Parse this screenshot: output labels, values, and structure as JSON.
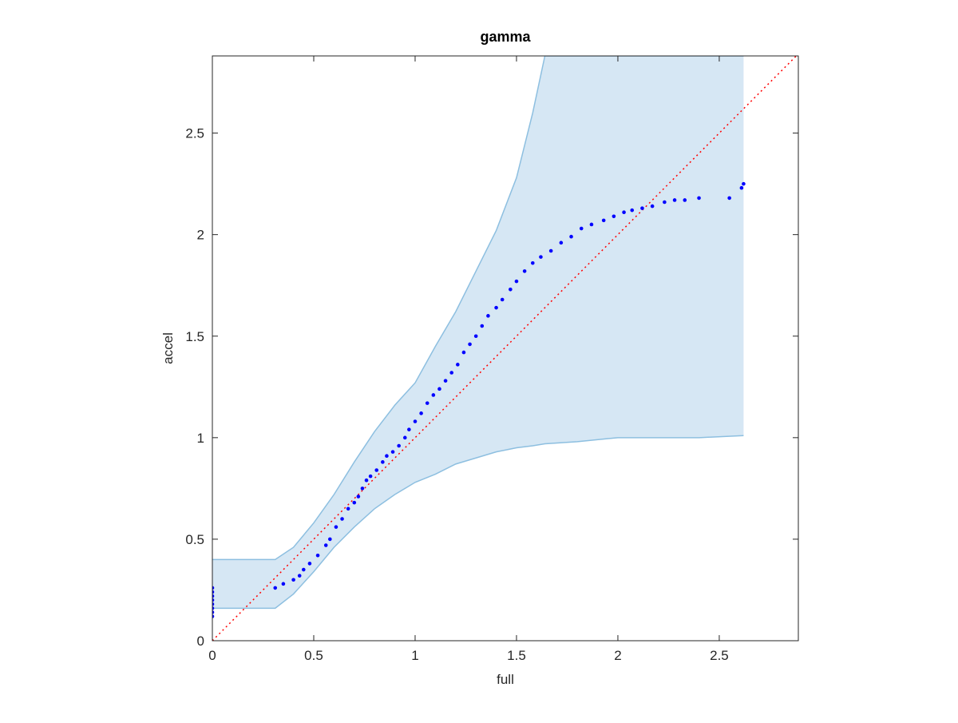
{
  "chart_data": {
    "type": "scatter",
    "title": "gamma",
    "x_label": "full",
    "y_label": "accel",
    "xlim": [
      0,
      2.89
    ],
    "ylim": [
      0,
      2.88
    ],
    "xticks": [
      0,
      0.5,
      1,
      1.5,
      2,
      2.5
    ],
    "yticks": [
      0,
      0.5,
      1,
      1.5,
      2,
      2.5
    ],
    "color": "#0000ff",
    "diagonal_color": "#ff0000",
    "band_color": "#d6e7f4",
    "band_edge_color": "#8dbfe0",
    "band": {
      "x": [
        0,
        0.31,
        0.4,
        0.5,
        0.6,
        0.7,
        0.8,
        0.9,
        1.0,
        1.1,
        1.2,
        1.3,
        1.4,
        1.5,
        1.58,
        1.64,
        1.8,
        2.0,
        2.2,
        2.4,
        2.62
      ],
      "upper": [
        0.4,
        0.4,
        0.46,
        0.58,
        0.72,
        0.88,
        1.03,
        1.16,
        1.27,
        1.45,
        1.62,
        1.82,
        2.02,
        2.28,
        2.6,
        2.88,
        2.88,
        2.88,
        2.88,
        2.88,
        2.88
      ],
      "lower": [
        0.16,
        0.16,
        0.23,
        0.34,
        0.46,
        0.56,
        0.65,
        0.72,
        0.78,
        0.82,
        0.87,
        0.9,
        0.93,
        0.95,
        0.96,
        0.97,
        0.98,
        1.0,
        1.0,
        1.0,
        1.01
      ]
    },
    "x": [
      0,
      0,
      0,
      0,
      0,
      0,
      0,
      0,
      0.31,
      0.35,
      0.4,
      0.43,
      0.45,
      0.48,
      0.52,
      0.56,
      0.58,
      0.61,
      0.64,
      0.67,
      0.7,
      0.72,
      0.74,
      0.76,
      0.78,
      0.81,
      0.84,
      0.86,
      0.89,
      0.92,
      0.95,
      0.97,
      1.0,
      1.03,
      1.06,
      1.09,
      1.12,
      1.15,
      1.18,
      1.21,
      1.24,
      1.27,
      1.3,
      1.33,
      1.36,
      1.4,
      1.43,
      1.47,
      1.5,
      1.54,
      1.58,
      1.62,
      1.67,
      1.72,
      1.77,
      1.82,
      1.87,
      1.93,
      1.98,
      2.03,
      2.07,
      2.12,
      2.17,
      2.23,
      2.28,
      2.33,
      2.4,
      2.55,
      2.61,
      2.62
    ],
    "y": [
      0.12,
      0.14,
      0.16,
      0.18,
      0.2,
      0.22,
      0.24,
      0.26,
      0.26,
      0.28,
      0.3,
      0.32,
      0.35,
      0.38,
      0.42,
      0.47,
      0.5,
      0.56,
      0.6,
      0.65,
      0.68,
      0.71,
      0.75,
      0.79,
      0.81,
      0.84,
      0.88,
      0.91,
      0.93,
      0.96,
      1.0,
      1.04,
      1.08,
      1.12,
      1.17,
      1.21,
      1.24,
      1.28,
      1.32,
      1.36,
      1.42,
      1.46,
      1.5,
      1.55,
      1.6,
      1.64,
      1.68,
      1.73,
      1.77,
      1.82,
      1.86,
      1.89,
      1.92,
      1.96,
      1.99,
      2.03,
      2.05,
      2.07,
      2.09,
      2.11,
      2.12,
      2.13,
      2.14,
      2.16,
      2.17,
      2.17,
      2.18,
      2.18,
      2.23,
      2.25
    ]
  }
}
